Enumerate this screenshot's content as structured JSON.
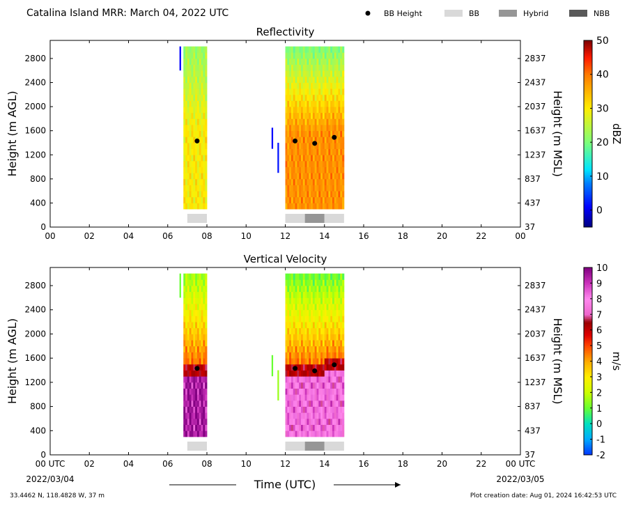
{
  "header": {
    "title": "Catalina Island MRR:  March 04, 2022 UTC",
    "legend": [
      {
        "label": "BB Height",
        "kind": "dot",
        "color": "#000000"
      },
      {
        "label": "BB",
        "kind": "box",
        "color": "#d9d9d9"
      },
      {
        "label": "Hybrid",
        "kind": "box",
        "color": "#969696"
      },
      {
        "label": "NBB",
        "kind": "box",
        "color": "#595959"
      }
    ]
  },
  "footer": {
    "coords": "33.4462 N, 118.4828 W, 37 m",
    "creation": "Plot creation date: Aug 01, 2024 16:42:53 UTC",
    "xlabel": "Time (UTC)",
    "start_date": "2022/03/04",
    "end_date": "2022/03/05"
  },
  "chart_data": [
    {
      "type": "heatmap",
      "title": "Reflectivity",
      "ylabel": "Height (m AGL)",
      "ylabel_right": "Height (m MSL)",
      "colorbar_label": "dBZ",
      "xlim": [
        0,
        24
      ],
      "ylim": [
        0,
        3100
      ],
      "x_ticks": [
        "00",
        "02",
        "04",
        "06",
        "08",
        "10",
        "12",
        "14",
        "16",
        "18",
        "20",
        "22",
        "00"
      ],
      "y_ticks": [
        0,
        400,
        800,
        1200,
        1600,
        2000,
        2400,
        2800
      ],
      "y_ticks_right": [
        37,
        437,
        837,
        1237,
        1637,
        2037,
        2437,
        2837
      ],
      "colorbar": {
        "range": [
          -5,
          50
        ],
        "ticks": [
          0,
          10,
          20,
          30,
          40,
          50
        ],
        "stops": [
          {
            "v": -5,
            "c": "#00007f"
          },
          {
            "v": 1,
            "c": "#0000ff"
          },
          {
            "v": 8,
            "c": "#0080ff"
          },
          {
            "v": 12,
            "c": "#00e5ff"
          },
          {
            "v": 20,
            "c": "#7dff7a"
          },
          {
            "v": 30,
            "c": "#ffee00"
          },
          {
            "v": 40,
            "c": "#ff7a00"
          },
          {
            "v": 45,
            "c": "#ff1a00"
          },
          {
            "v": 50,
            "c": "#7f0000"
          }
        ]
      },
      "precip_columns": [
        {
          "t_start": 6.8,
          "t_end": 8.0,
          "h_bottom": 300,
          "h_top": 3000,
          "core": 30,
          "top_value": 22
        },
        {
          "t_start": 12.0,
          "t_end": 15.0,
          "h_bottom": 300,
          "h_top": 3000,
          "core": 38,
          "top_value": 20
        }
      ],
      "echo_patches": [
        {
          "t": 6.6,
          "h_bottom": 2600,
          "h_top": 3000,
          "value": 1
        },
        {
          "t": 11.3,
          "h_bottom": 1300,
          "h_top": 1650,
          "value": 1
        },
        {
          "t": 11.6,
          "h_bottom": 900,
          "h_top": 1400,
          "value": 2
        }
      ],
      "bb_height": [
        {
          "t": 7.5,
          "h": 1430
        },
        {
          "t": 12.5,
          "h": 1430
        },
        {
          "t": 13.5,
          "h": 1390
        },
        {
          "t": 14.5,
          "h": 1490
        }
      ],
      "bb_type": [
        {
          "t_start": 7.0,
          "t_end": 8.0,
          "type": "BB"
        },
        {
          "t_start": 12.0,
          "t_end": 13.0,
          "type": "BB"
        },
        {
          "t_start": 13.0,
          "t_end": 14.0,
          "type": "Hybrid"
        },
        {
          "t_start": 14.0,
          "t_end": 15.0,
          "type": "BB"
        }
      ]
    },
    {
      "type": "heatmap",
      "title": "Vertical Velocity",
      "ylabel": "Height (m AGL)",
      "ylabel_right": "Height (m MSL)",
      "colorbar_label": "m/s",
      "xlim": [
        0,
        24
      ],
      "ylim": [
        0,
        3100
      ],
      "x_ticks": [
        "00 UTC",
        "02",
        "04",
        "06",
        "08",
        "10",
        "12",
        "14",
        "16",
        "18",
        "20",
        "22",
        "00 UTC"
      ],
      "y_ticks": [
        0,
        400,
        800,
        1200,
        1600,
        2000,
        2400,
        2800
      ],
      "y_ticks_right": [
        37,
        437,
        837,
        1237,
        1637,
        2037,
        2437,
        2837
      ],
      "colorbar": {
        "range": [
          -2,
          10
        ],
        "ticks": [
          -2,
          -1,
          0,
          1,
          2,
          3,
          4,
          5,
          6,
          7,
          8,
          9,
          10
        ],
        "stops": [
          {
            "v": -2,
            "c": "#0033ff"
          },
          {
            "v": -1,
            "c": "#00aaff"
          },
          {
            "v": 0,
            "c": "#00e0c0"
          },
          {
            "v": 1,
            "c": "#66ff33"
          },
          {
            "v": 2,
            "c": "#ccff00"
          },
          {
            "v": 3,
            "c": "#ffee00"
          },
          {
            "v": 4,
            "c": "#ffaa00"
          },
          {
            "v": 5,
            "c": "#ff4400"
          },
          {
            "v": 5.7,
            "c": "#dd0000"
          },
          {
            "v": 6.5,
            "c": "#990000"
          },
          {
            "v": 7,
            "c": "#ee66cc"
          },
          {
            "v": 8,
            "c": "#ff88ee"
          },
          {
            "v": 9,
            "c": "#cc33bb"
          },
          {
            "v": 10,
            "c": "#800080"
          }
        ]
      },
      "precip_columns": [
        {
          "t_start": 6.8,
          "t_end": 8.0,
          "h_bottom": 300,
          "h_top": 3000,
          "core": 9.5,
          "top_value": 1.5
        },
        {
          "t_start": 12.0,
          "t_end": 15.0,
          "h_bottom": 300,
          "h_top": 3000,
          "core": 8,
          "top_value": 1.0
        }
      ],
      "echo_patches": [
        {
          "t": 6.6,
          "h_bottom": 2600,
          "h_top": 3000,
          "value": 1
        },
        {
          "t": 11.3,
          "h_bottom": 1300,
          "h_top": 1650,
          "value": 1
        },
        {
          "t": 11.6,
          "h_bottom": 900,
          "h_top": 1400,
          "value": 1.5
        }
      ],
      "bb_height": [
        {
          "t": 7.5,
          "h": 1430
        },
        {
          "t": 12.5,
          "h": 1430
        },
        {
          "t": 13.5,
          "h": 1390
        },
        {
          "t": 14.5,
          "h": 1490
        }
      ],
      "bb_type": [
        {
          "t_start": 7.0,
          "t_end": 8.0,
          "type": "BB"
        },
        {
          "t_start": 12.0,
          "t_end": 13.0,
          "type": "BB"
        },
        {
          "t_start": 13.0,
          "t_end": 14.0,
          "type": "Hybrid"
        },
        {
          "t_start": 14.0,
          "t_end": 15.0,
          "type": "BB"
        }
      ]
    }
  ]
}
